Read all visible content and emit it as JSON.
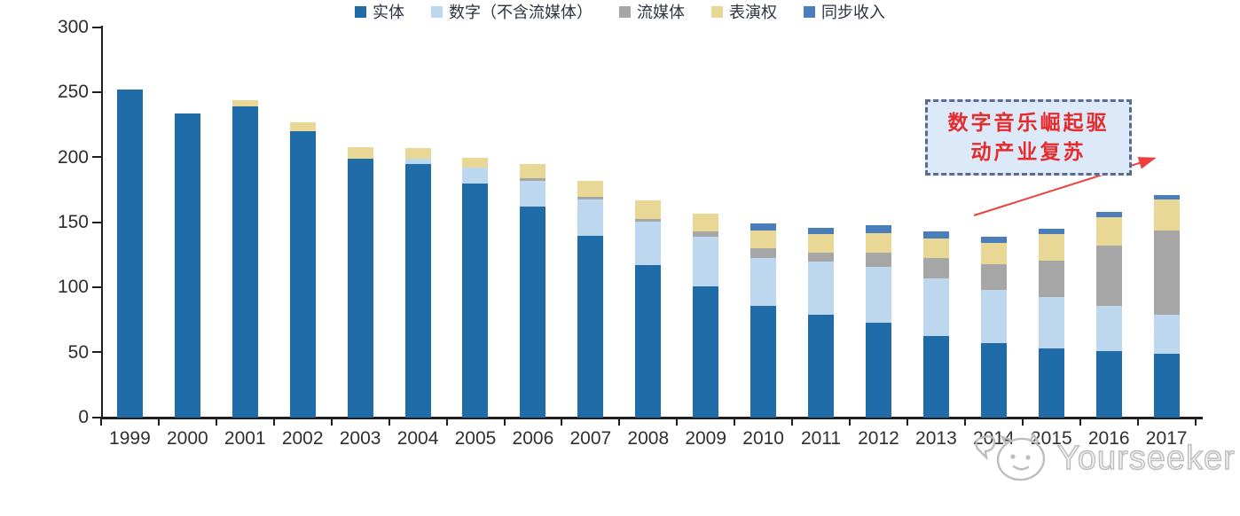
{
  "chart_data": {
    "type": "bar",
    "stacked": true,
    "title": "",
    "xlabel": "",
    "ylabel": "",
    "ylim": [
      0,
      300
    ],
    "yticks": [
      0,
      50,
      100,
      150,
      200,
      250,
      300
    ],
    "grid": false,
    "legend_position": "bottom",
    "categories": [
      "1999",
      "2000",
      "2001",
      "2002",
      "2003",
      "2004",
      "2005",
      "2006",
      "2007",
      "2008",
      "2009",
      "2010",
      "2011",
      "2012",
      "2013",
      "2014",
      "2015",
      "2016",
      "2017"
    ],
    "series": [
      {
        "name": "实体",
        "color": "#1f6ca8",
        "values": [
          252,
          234,
          239,
          220,
          199,
          195,
          180,
          162,
          140,
          117,
          101,
          86,
          79,
          73,
          63,
          57,
          53,
          51,
          49
        ]
      },
      {
        "name": "数字（不含流媒体）",
        "color": "#bdd7ee",
        "values": [
          0,
          0,
          0,
          0,
          0,
          4,
          12,
          20,
          28,
          34,
          38,
          37,
          41,
          43,
          44,
          41,
          40,
          35,
          30
        ]
      },
      {
        "name": "流媒体",
        "color": "#a6a6a6",
        "values": [
          0,
          0,
          0,
          0,
          0,
          0,
          0,
          2,
          2,
          2,
          4,
          7,
          7,
          11,
          16,
          20,
          28,
          46,
          65
        ]
      },
      {
        "name": "表演权",
        "color": "#e9d795",
        "values": [
          0,
          0,
          5,
          7,
          9,
          8,
          8,
          11,
          12,
          14,
          14,
          14,
          14,
          15,
          15,
          16,
          20,
          22,
          24
        ]
      },
      {
        "name": "同步收入",
        "color": "#4a7ebb",
        "values": [
          0,
          0,
          0,
          0,
          0,
          0,
          0,
          0,
          0,
          0,
          0,
          5,
          5,
          6,
          5,
          5,
          4,
          4,
          3
        ]
      }
    ]
  },
  "annotation": {
    "line1": "数字音乐崛起驱",
    "line2": "动产业复苏",
    "box_fill": "#dbe9f8",
    "box_border_color": "#5b6b8c",
    "text_color": "#e52b2b",
    "arrow_color": "#ed3f3b"
  },
  "watermark": {
    "text": "Yourseeker",
    "logo_icon": "doodle-cat-face-icon",
    "color": "#bdbdbd"
  },
  "axis": {
    "line_color": "#1f1f1f",
    "label_color": "#2d2d2d"
  }
}
